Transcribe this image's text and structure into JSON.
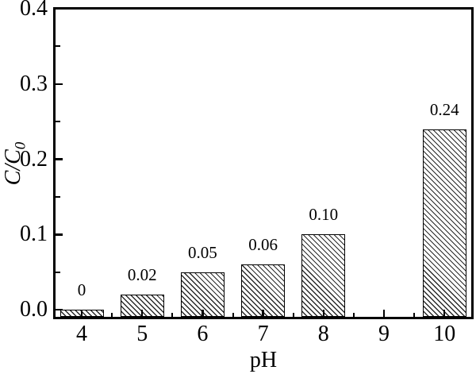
{
  "figure": {
    "background_color": "#ffffff",
    "ink_color": "#000000"
  },
  "chart_data": {
    "type": "bar",
    "title": "",
    "xlabel": "pH",
    "ylabel": "C/C",
    "ylabel_subscript": "0",
    "categories": [
      "4",
      "5",
      "6",
      "7",
      "8",
      "9",
      "10"
    ],
    "values": [
      0,
      0.02,
      0.05,
      0.06,
      0.1,
      null,
      0.24
    ],
    "bar_value_labels": [
      "0",
      "0.02",
      "0.05",
      "0.06",
      "0.10",
      "",
      "0.24"
    ],
    "x_range": [
      3.57,
      10.45
    ],
    "ylim": [
      -0.0095,
      0.4
    ],
    "y_major_ticks": [
      0.0,
      0.1,
      0.2,
      0.3,
      0.4
    ],
    "y_tick_labels": [
      "0.0",
      "0.1",
      "0.2",
      "0.3",
      "0.4"
    ],
    "y_minor_ticks": [
      0.05,
      0.15,
      0.25,
      0.35
    ],
    "x_minor_ticks": [
      4.5,
      5.5,
      6.5,
      7.5,
      8.5,
      9.5
    ],
    "grid": false,
    "legend": null,
    "bar_style": {
      "fill": "#ffffff",
      "hatch": "diagonal-backslash",
      "border_color": "#000000"
    }
  }
}
